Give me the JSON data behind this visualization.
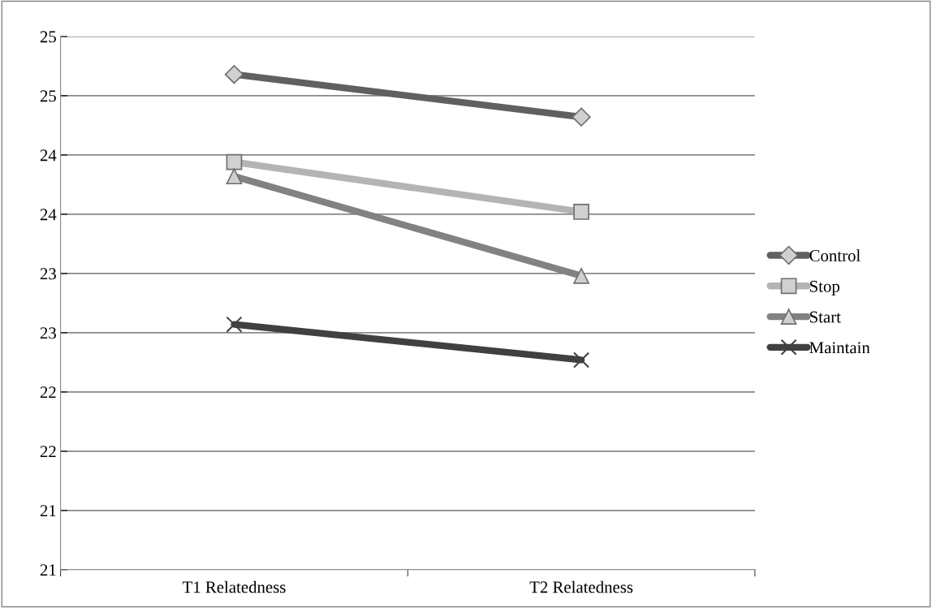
{
  "chart_data": {
    "type": "line",
    "categories": [
      "T1 Relatedness",
      "T2 Relatedness"
    ],
    "series": [
      {
        "name": "Control",
        "color": "#606060",
        "marker": "diamond",
        "values": [
          24.68,
          24.32
        ]
      },
      {
        "name": "Stop",
        "color": "#b4b4b4",
        "marker": "square",
        "values": [
          23.94,
          23.52
        ]
      },
      {
        "name": "Start",
        "color": "#828282",
        "marker": "triangle",
        "values": [
          23.82,
          22.98
        ]
      },
      {
        "name": "Maintain",
        "color": "#404040",
        "marker": "cross",
        "values": [
          22.57,
          22.27
        ]
      }
    ],
    "ylim": [
      20.5,
      25.0
    ],
    "yticks": [
      {
        "value": 20.5,
        "label": "21"
      },
      {
        "value": 21.0,
        "label": "21"
      },
      {
        "value": 21.5,
        "label": "22"
      },
      {
        "value": 22.0,
        "label": "22"
      },
      {
        "value": 22.5,
        "label": "23"
      },
      {
        "value": 23.0,
        "label": "23"
      },
      {
        "value": 23.5,
        "label": "24"
      },
      {
        "value": 24.0,
        "label": "24"
      },
      {
        "value": 24.5,
        "label": "25"
      },
      {
        "value": 25.0,
        "label": "25"
      }
    ],
    "grid": "y",
    "legend": "right",
    "line_style": "solid"
  }
}
